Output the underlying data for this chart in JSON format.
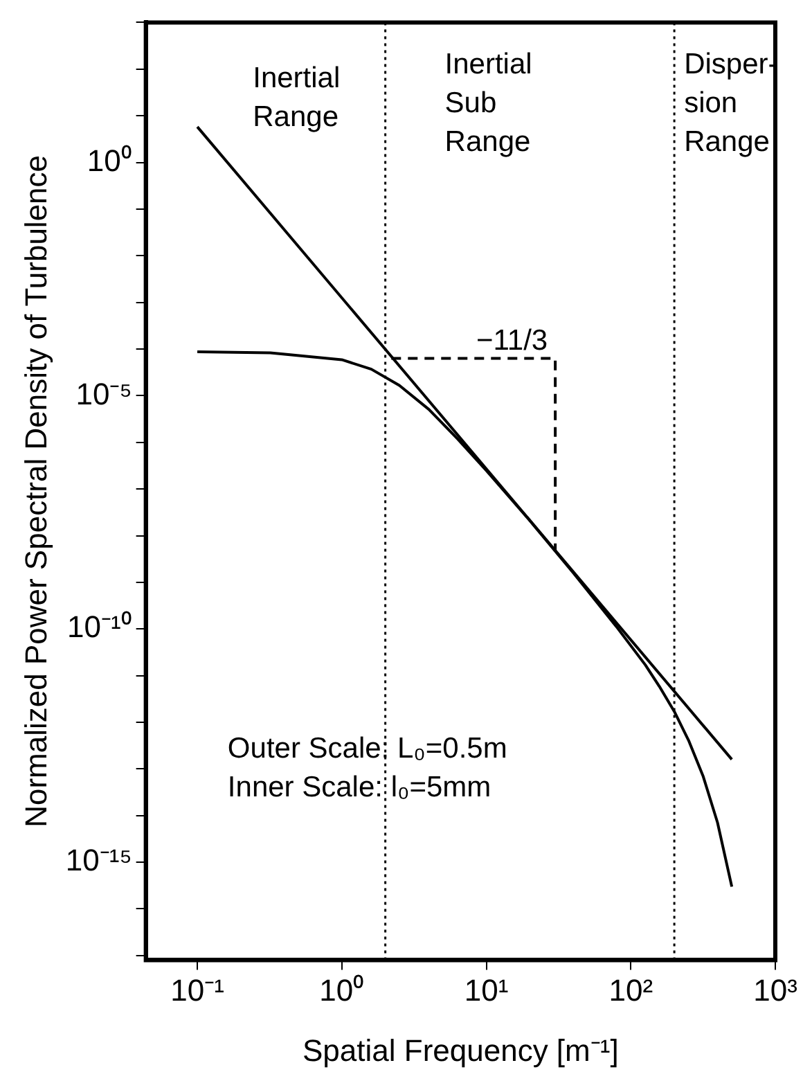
{
  "chart_data": {
    "type": "line",
    "xlabel": "Spatial Frequency [m⁻¹]",
    "ylabel": "Normalized Power Spectral Density of Turbulence",
    "log": "xy",
    "grid": false,
    "legend": false,
    "marker": "none",
    "xlim": [
      0.044,
      1000
    ],
    "ylim": [
      8e-18,
      1000
    ],
    "xticks": [
      {
        "value": 0.1,
        "label": "10⁻¹"
      },
      {
        "value": 1,
        "label": "10⁰"
      },
      {
        "value": 10,
        "label": "10¹"
      },
      {
        "value": 100,
        "label": "10²"
      },
      {
        "value": 1000,
        "label": "10³"
      }
    ],
    "yticks": [
      {
        "value": 1e-17,
        "label": null
      },
      {
        "value": 1e-16,
        "label": null
      },
      {
        "value": 1e-15,
        "label": "10⁻¹⁵"
      },
      {
        "value": 1e-14,
        "label": null
      },
      {
        "value": 1e-13,
        "label": null
      },
      {
        "value": 1e-12,
        "label": null
      },
      {
        "value": 1e-11,
        "label": null
      },
      {
        "value": 1e-10,
        "label": "10⁻¹⁰"
      },
      {
        "value": 1e-09,
        "label": null
      },
      {
        "value": 1e-08,
        "label": null
      },
      {
        "value": 1e-07,
        "label": null
      },
      {
        "value": 1e-06,
        "label": null
      },
      {
        "value": 1e-05,
        "label": "10⁻⁵"
      },
      {
        "value": 0.0001,
        "label": null
      },
      {
        "value": 0.001,
        "label": null
      },
      {
        "value": 0.01,
        "label": null
      },
      {
        "value": 0.1,
        "label": null
      },
      {
        "value": 1,
        "label": "10⁰"
      },
      {
        "value": 10,
        "label": null
      },
      {
        "value": 100,
        "label": null
      },
      {
        "value": 1000,
        "label": null
      }
    ],
    "series": [
      {
        "color": "#000000",
        "line_style": "solid",
        "x": [
          0.1,
          500
        ],
        "values": [
          5.8,
          1.6e-13
        ]
      },
      {
        "color": "#000000",
        "line_style": "solid",
        "x": [
          0.1,
          0.32,
          1,
          1.6,
          2.5,
          4,
          6.3,
          10,
          20,
          40,
          79,
          126,
          158,
          200,
          251,
          316,
          398,
          500
        ],
        "values": [
          8.7e-05,
          8.3e-05,
          5.9e-05,
          3.7e-05,
          1.66e-05,
          5.1e-06,
          1.2e-06,
          2.5e-07,
          2.1e-08,
          1.6e-09,
          1.15e-10,
          1.7e-11,
          5.8e-12,
          1.7e-12,
          4.1e-13,
          7.1e-14,
          7.1e-15,
          3e-16
        ]
      },
      {
        "color": "#000000",
        "line_style": "dashed",
        "x": [
          2.2,
          30,
          30
        ],
        "values": [
          6.3e-05,
          6.3e-05,
          4.8e-09
        ]
      }
    ],
    "ref_lines": [
      {
        "axis": "x",
        "value": 2,
        "color": "#000000",
        "line_style": "dotted"
      },
      {
        "axis": "x",
        "value": 200,
        "color": "#000000",
        "line_style": "dotted"
      }
    ],
    "annotations": [
      "Inertial\nRange",
      "Inertial\nSub\nRange",
      "Disper-\nsion\nRange",
      "−11/3",
      "Outer Scale: L₀=0.5m\nInner Scale: l₀=5mm"
    ]
  }
}
